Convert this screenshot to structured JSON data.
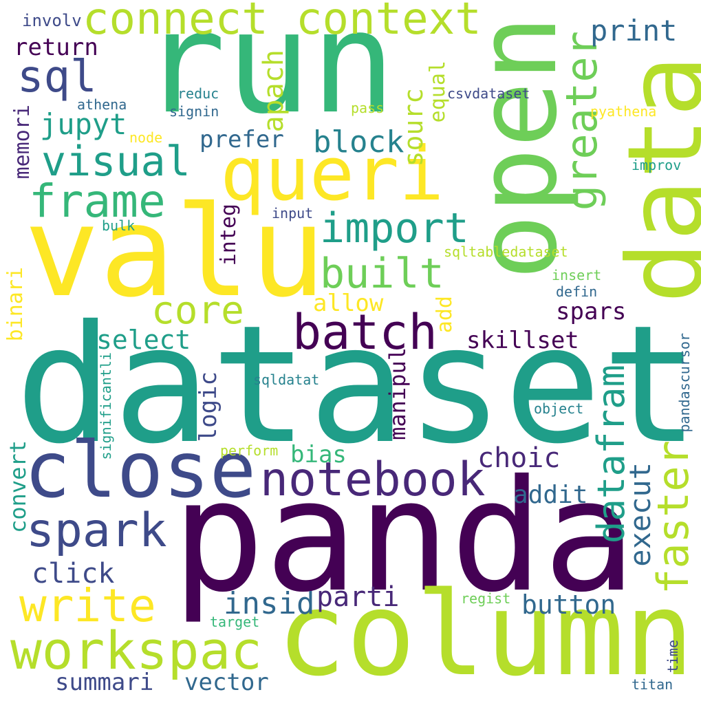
{
  "words": {
    "dataset": "dataset",
    "panda": "panda",
    "run": "run",
    "valu": "valu",
    "column": "column",
    "open": "open",
    "data": "data",
    "close": "close",
    "queri": "queri",
    "notebook": "notebook",
    "connect": "connect",
    "context": "context",
    "workspac": "workspac",
    "spark": "spark",
    "write": "write",
    "batch": "batch",
    "frame": "frame",
    "visual": "visual",
    "sql": "sql",
    "import": "import",
    "built": "built",
    "core": "core",
    "greater": "greater",
    "faster": "faster",
    "datafram": "datafram",
    "execut": "execut",
    "print": "print",
    "return": "return",
    "jupyt": "jupyt",
    "prefer": "prefer",
    "block": "block",
    "apach": "apach",
    "sourc": "sourc",
    "equal": "equal",
    "memori": "memori",
    "integ": "integ",
    "allow": "allow",
    "spars": "spars",
    "add": "add",
    "binari": "binari",
    "select": "select",
    "skillset": "skillset",
    "manipul": "manipul",
    "logic": "logic",
    "bias": "bias",
    "choic": "choic",
    "addit": "addit",
    "convert": "convert",
    "click": "click",
    "insid": "insid",
    "parti": "parti",
    "button": "button",
    "summari": "summari",
    "vector": "vector",
    "involv": "involv",
    "reduc": "reduc",
    "athena": "athena",
    "signin": "signin",
    "pass": "pass",
    "csvdataset": "csvdataset",
    "pyathena": "pyathena",
    "node": "node",
    "improv": "improv",
    "bulk": "bulk",
    "input": "input",
    "sqltabledataset": "sqltabledataset",
    "insert": "insert",
    "defin": "defin",
    "pandascursor": "pandascursor",
    "significantli": "significantli",
    "sqldatat": "sqldatat",
    "object": "object",
    "perform": "perform",
    "regist": "regist",
    "target": "target",
    "time": "time",
    "titan": "titan"
  },
  "colors": {
    "background": "#ffffff",
    "palette": [
      "#440154",
      "#482878",
      "#3e4a89",
      "#31688e",
      "#26828e",
      "#1f9e89",
      "#35b779",
      "#6ece58",
      "#b5de2b",
      "#fde725"
    ]
  }
}
